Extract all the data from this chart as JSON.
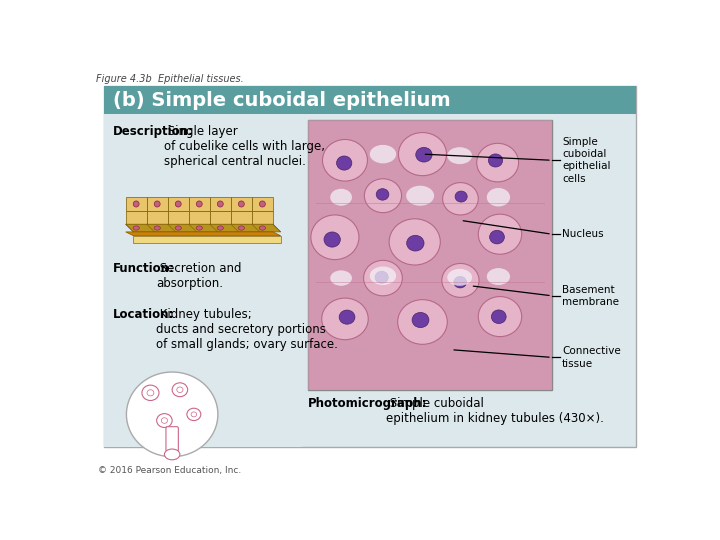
{
  "figure_label": "Figure 4.3b  Epithelial tissues.",
  "panel_title": "(b) Simple cuboidal epithelium",
  "panel_title_bg": "#5b9ea0",
  "panel_title_color": "#ffffff",
  "panel_bg": "#dce8ec",
  "description_bold": "Description:",
  "description_text": " Single layer\nof cubelike cells with large,\nspherical central nuclei.",
  "function_bold": "Function:",
  "function_text": " Secretion and\nabsorption.",
  "location_bold": "Location:",
  "location_text": " Kidney tubules;\nducts and secretory portions\nof small glands; ovary surface.",
  "photo_bold": "Photomicrograph:",
  "photo_text": " Simple cuboidal\nepithelium in kidney tubules (430×).",
  "label1": "Simple\ncuboidal\nepithelial\ncells",
  "label2": "Nucleus",
  "label3": "Basement\nmembrane",
  "label4": "Connective\ntissue",
  "copyright": "© 2016 Pearson Education, Inc.",
  "outer_bg": "#ffffff",
  "box_border": "#aaaaaa",
  "text_color": "#000000",
  "line_color": "#000000"
}
